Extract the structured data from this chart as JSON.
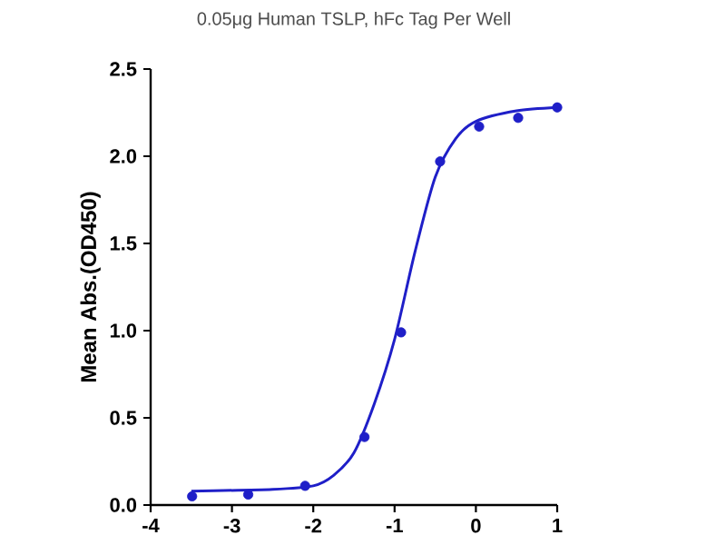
{
  "chart_data": {
    "type": "scatter",
    "title": "0.05μg Human TSLP, hFc Tag Per Well",
    "ylabel": "Mean Abs.(OD450)",
    "xlim": [
      -4,
      1
    ],
    "ylim": [
      0,
      2.5
    ],
    "xticks": [
      -4,
      -3,
      -2,
      -1,
      0,
      1
    ],
    "yticks": [
      {
        "value": 0,
        "label": "0.0"
      },
      {
        "value": 0.5,
        "label": "0.5"
      },
      {
        "value": 1,
        "label": "1.0"
      },
      {
        "value": 1.5,
        "label": "1.5"
      },
      {
        "value": 2,
        "label": "2.0"
      },
      {
        "value": 2.5,
        "label": "2.5"
      }
    ],
    "grid": false,
    "series": [
      {
        "marker": "circle",
        "color": "#1f1fc8",
        "x": [
          -3.49,
          -2.8,
          -2.1,
          -1.37,
          -0.92,
          -0.44,
          0.04,
          0.52,
          1.0
        ],
        "values": [
          0.05,
          0.06,
          0.11,
          0.39,
          0.99,
          1.97,
          2.17,
          2.22,
          2.28
        ]
      },
      {
        "type": "line",
        "marker": "none",
        "line_style": "solid",
        "color": "#1f1fc8",
        "x": [
          -3.5,
          -2.5,
          -2.0,
          -1.75,
          -1.5,
          -1.25,
          -1.0,
          -0.75,
          -0.5,
          -0.25,
          0.0,
          0.5,
          1.0
        ],
        "values": [
          0.08,
          0.09,
          0.11,
          0.17,
          0.3,
          0.58,
          0.95,
          1.45,
          1.88,
          2.1,
          2.2,
          2.26,
          2.28
        ]
      }
    ]
  }
}
